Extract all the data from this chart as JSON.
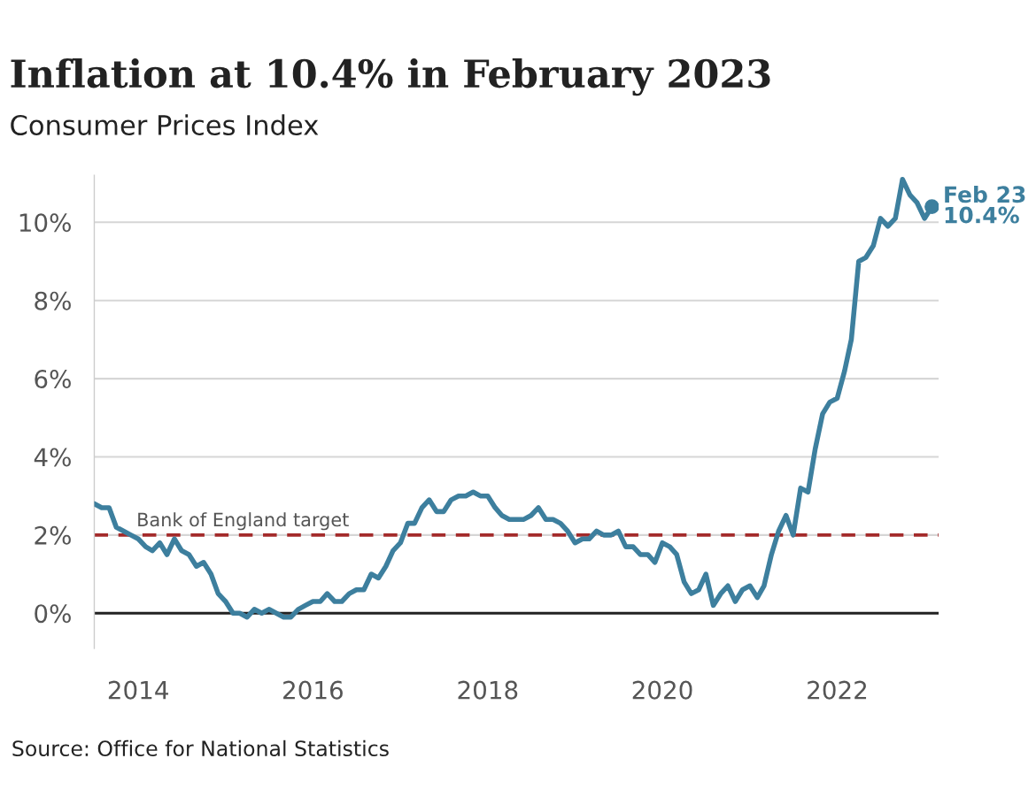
{
  "chart_data": {
    "type": "line",
    "title": "Inflation at 10.4% in February 2023",
    "subtitle": "Consumer Prices Index",
    "series": [
      {
        "color": "#3d7f9e",
        "x": [
          "2013-07",
          "2013-08",
          "2013-09",
          "2013-10",
          "2013-11",
          "2013-12",
          "2014-01",
          "2014-02",
          "2014-03",
          "2014-04",
          "2014-05",
          "2014-06",
          "2014-07",
          "2014-08",
          "2014-09",
          "2014-10",
          "2014-11",
          "2014-12",
          "2015-01",
          "2015-02",
          "2015-03",
          "2015-04",
          "2015-05",
          "2015-06",
          "2015-07",
          "2015-08",
          "2015-09",
          "2015-10",
          "2015-11",
          "2015-12",
          "2016-01",
          "2016-02",
          "2016-03",
          "2016-04",
          "2016-05",
          "2016-06",
          "2016-07",
          "2016-08",
          "2016-09",
          "2016-10",
          "2016-11",
          "2016-12",
          "2017-01",
          "2017-02",
          "2017-03",
          "2017-04",
          "2017-05",
          "2017-06",
          "2017-07",
          "2017-08",
          "2017-09",
          "2017-10",
          "2017-11",
          "2017-12",
          "2018-01",
          "2018-02",
          "2018-03",
          "2018-04",
          "2018-05",
          "2018-06",
          "2018-07",
          "2018-08",
          "2018-09",
          "2018-10",
          "2018-11",
          "2018-12",
          "2019-01",
          "2019-02",
          "2019-03",
          "2019-04",
          "2019-05",
          "2019-06",
          "2019-07",
          "2019-08",
          "2019-09",
          "2019-10",
          "2019-11",
          "2019-12",
          "2020-01",
          "2020-02",
          "2020-03",
          "2020-04",
          "2020-05",
          "2020-06",
          "2020-07",
          "2020-08",
          "2020-09",
          "2020-10",
          "2020-11",
          "2020-12",
          "2021-01",
          "2021-02",
          "2021-03",
          "2021-04",
          "2021-05",
          "2021-06",
          "2021-07",
          "2021-08",
          "2021-09",
          "2021-10",
          "2021-11",
          "2021-12",
          "2022-01",
          "2022-02",
          "2022-03",
          "2022-04",
          "2022-05",
          "2022-06",
          "2022-07",
          "2022-08",
          "2022-09",
          "2022-10",
          "2022-11",
          "2022-12",
          "2023-01",
          "2023-02"
        ],
        "values": [
          2.8,
          2.7,
          2.7,
          2.2,
          2.1,
          2.0,
          1.9,
          1.7,
          1.6,
          1.8,
          1.5,
          1.9,
          1.6,
          1.5,
          1.2,
          1.3,
          1.0,
          0.5,
          0.3,
          0.0,
          0.0,
          -0.1,
          0.1,
          0.0,
          0.1,
          0.0,
          -0.1,
          -0.1,
          0.1,
          0.2,
          0.3,
          0.3,
          0.5,
          0.3,
          0.3,
          0.5,
          0.6,
          0.6,
          1.0,
          0.9,
          1.2,
          1.6,
          1.8,
          2.3,
          2.3,
          2.7,
          2.9,
          2.6,
          2.6,
          2.9,
          3.0,
          3.0,
          3.1,
          3.0,
          3.0,
          2.7,
          2.5,
          2.4,
          2.4,
          2.4,
          2.5,
          2.7,
          2.4,
          2.4,
          2.3,
          2.1,
          1.8,
          1.9,
          1.9,
          2.1,
          2.0,
          2.0,
          2.1,
          1.7,
          1.7,
          1.5,
          1.5,
          1.3,
          1.8,
          1.7,
          1.5,
          0.8,
          0.5,
          0.6,
          1.0,
          0.2,
          0.5,
          0.7,
          0.3,
          0.6,
          0.7,
          0.4,
          0.7,
          1.5,
          2.1,
          2.5,
          2.0,
          3.2,
          3.1,
          4.2,
          5.1,
          5.4,
          5.5,
          6.2,
          7.0,
          9.0,
          9.1,
          9.4,
          10.1,
          9.9,
          10.1,
          11.1,
          10.7,
          10.5,
          10.1,
          10.4
        ]
      }
    ],
    "xlim": [
      "2013-07",
      "2023-03"
    ],
    "xticks": [
      "2014",
      "2016",
      "2018",
      "2020",
      "2022"
    ],
    "ylim": [
      -0.9,
      11.2
    ],
    "yticks": [
      {
        "value": 0,
        "label": "0%"
      },
      {
        "value": 2,
        "label": "2%"
      },
      {
        "value": 4,
        "label": "4%"
      },
      {
        "value": 6,
        "label": "6%"
      },
      {
        "value": 8,
        "label": "8%"
      },
      {
        "value": 10,
        "label": "10%"
      }
    ],
    "grid": "y",
    "line_style": "solid",
    "marker": "none",
    "ref_lines": [
      {
        "axis": "y",
        "value": 0,
        "color": "#222222",
        "line_style": "solid"
      },
      {
        "axis": "y",
        "value": 2,
        "label": "Bank of England target",
        "color": "#a32a2a",
        "line_style": "dashed"
      }
    ],
    "annotations": [
      {
        "text": "Feb 23\n10.4%",
        "x": "2023-02",
        "y": 10.4
      },
      "Source: Office for National Statistics"
    ]
  }
}
